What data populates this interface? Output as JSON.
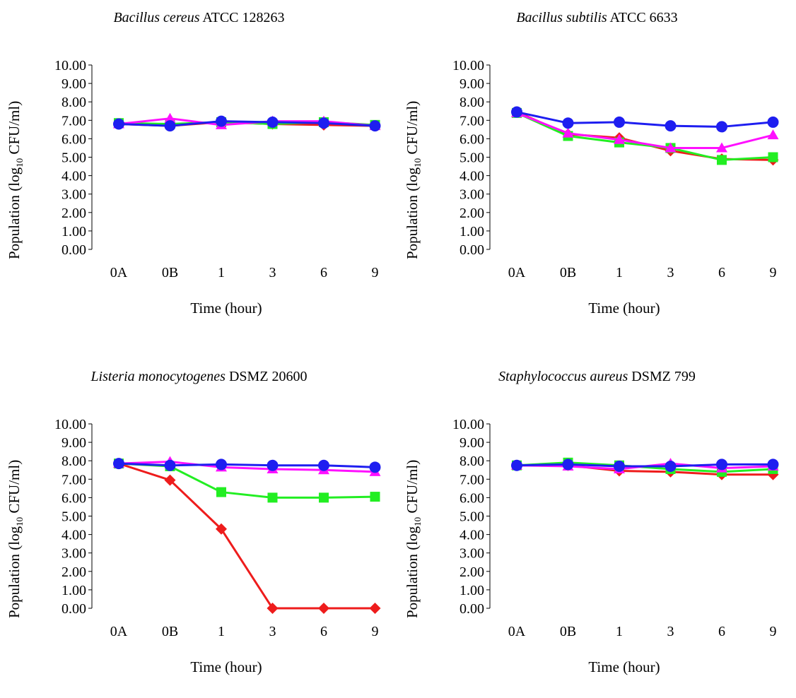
{
  "colors": {
    "red": "#ee1c1c",
    "green": "#22ee22",
    "magenta": "#ff10ff",
    "blue": "#1e1ef0"
  },
  "ylabel": {
    "pre": "Population (log",
    "sub": "10",
    "post": " CFU/ml)"
  },
  "xlabel": "Time (hour)",
  "chart_data": [
    {
      "type": "line",
      "title_italic": "Bacillus cereus",
      "title_rest": " ATCC 128263",
      "categories": [
        "0A",
        "0B",
        "1",
        "3",
        "6",
        "9"
      ],
      "ylim": [
        0,
        10
      ],
      "yticks": [
        "0.00",
        "1.00",
        "2.00",
        "3.00",
        "4.00",
        "5.00",
        "6.00",
        "7.00",
        "8.00",
        "9.00",
        "10.00"
      ],
      "series": [
        {
          "marker": "diamond",
          "color": "red",
          "values": [
            6.8,
            6.7,
            6.9,
            6.8,
            6.75,
            6.7
          ]
        },
        {
          "marker": "square",
          "color": "green",
          "values": [
            6.85,
            6.8,
            6.9,
            6.8,
            6.9,
            6.75
          ]
        },
        {
          "marker": "triangle",
          "color": "magenta",
          "values": [
            6.8,
            7.1,
            6.75,
            6.95,
            6.95,
            6.7
          ]
        },
        {
          "marker": "circle",
          "color": "blue",
          "values": [
            6.8,
            6.7,
            6.95,
            6.9,
            6.85,
            6.7
          ]
        }
      ]
    },
    {
      "type": "line",
      "title_italic": "Bacillus subtilis",
      "title_rest": " ATCC 6633",
      "categories": [
        "0A",
        "0B",
        "1",
        "3",
        "6",
        "9"
      ],
      "ylim": [
        0,
        10
      ],
      "yticks": [
        "0.00",
        "1.00",
        "2.00",
        "3.00",
        "4.00",
        "5.00",
        "6.00",
        "7.00",
        "8.00",
        "9.00",
        "10.00"
      ],
      "series": [
        {
          "marker": "diamond",
          "color": "red",
          "values": [
            7.45,
            6.25,
            6.05,
            5.35,
            4.9,
            4.85
          ]
        },
        {
          "marker": "square",
          "color": "green",
          "values": [
            7.4,
            6.15,
            5.8,
            5.5,
            4.85,
            5.0
          ]
        },
        {
          "marker": "triangle",
          "color": "magenta",
          "values": [
            7.4,
            6.3,
            5.95,
            5.5,
            5.5,
            6.2
          ]
        },
        {
          "marker": "circle",
          "color": "blue",
          "values": [
            7.45,
            6.85,
            6.9,
            6.7,
            6.65,
            6.9
          ]
        }
      ]
    },
    {
      "type": "line",
      "title_italic": "Listeria monocytogenes",
      "title_rest": " DSMZ 20600",
      "categories": [
        "0A",
        "0B",
        "1",
        "3",
        "6",
        "9"
      ],
      "ylim": [
        0,
        10
      ],
      "yticks": [
        "0.00",
        "1.00",
        "2.00",
        "3.00",
        "4.00",
        "5.00",
        "6.00",
        "7.00",
        "8.00",
        "9.00",
        "10.00"
      ],
      "series": [
        {
          "marker": "diamond",
          "color": "red",
          "values": [
            7.85,
            6.95,
            4.3,
            0.0,
            0.0,
            0.0
          ]
        },
        {
          "marker": "square",
          "color": "green",
          "values": [
            7.85,
            7.7,
            6.3,
            6.0,
            6.0,
            6.05
          ]
        },
        {
          "marker": "triangle",
          "color": "magenta",
          "values": [
            7.85,
            7.95,
            7.65,
            7.55,
            7.5,
            7.4
          ]
        },
        {
          "marker": "circle",
          "color": "blue",
          "values": [
            7.85,
            7.75,
            7.8,
            7.75,
            7.75,
            7.65
          ]
        }
      ]
    },
    {
      "type": "line",
      "title_italic": "Staphylococcus aureus",
      "title_rest": " DSMZ 799",
      "categories": [
        "0A",
        "0B",
        "1",
        "3",
        "6",
        "9"
      ],
      "ylim": [
        0,
        10
      ],
      "yticks": [
        "0.00",
        "1.00",
        "2.00",
        "3.00",
        "4.00",
        "5.00",
        "6.00",
        "7.00",
        "8.00",
        "9.00",
        "10.00"
      ],
      "series": [
        {
          "marker": "diamond",
          "color": "red",
          "values": [
            7.75,
            7.75,
            7.45,
            7.4,
            7.25,
            7.25
          ]
        },
        {
          "marker": "square",
          "color": "green",
          "values": [
            7.75,
            7.9,
            7.75,
            7.55,
            7.4,
            7.55
          ]
        },
        {
          "marker": "triangle",
          "color": "magenta",
          "values": [
            7.75,
            7.7,
            7.55,
            7.85,
            7.6,
            7.7
          ]
        },
        {
          "marker": "circle",
          "color": "blue",
          "values": [
            7.75,
            7.8,
            7.7,
            7.7,
            7.8,
            7.8
          ]
        }
      ]
    }
  ]
}
